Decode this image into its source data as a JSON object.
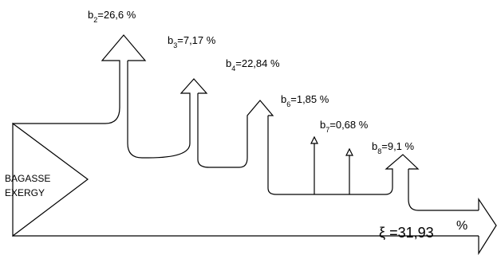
{
  "source": {
    "line1": "BAGASSE",
    "line2": "EXERGY"
  },
  "losses": [
    {
      "sym": "b",
      "sub": "2",
      "value": "=26,6 %"
    },
    {
      "sym": "b",
      "sub": "3",
      "value": "=7,17 %"
    },
    {
      "sym": "b",
      "sub": "4",
      "value": "=22,84 %"
    },
    {
      "sym": "b",
      "sub": "6",
      "value": "=1,85 %"
    },
    {
      "sym": "b",
      "sub": "7",
      "value": "=0,68 %"
    },
    {
      "sym": "b",
      "sub": "8",
      "value": "=9,1  %"
    }
  ],
  "efficiency": {
    "symbol": "ξ",
    "value": "=31,93",
    "unit": "%"
  }
}
